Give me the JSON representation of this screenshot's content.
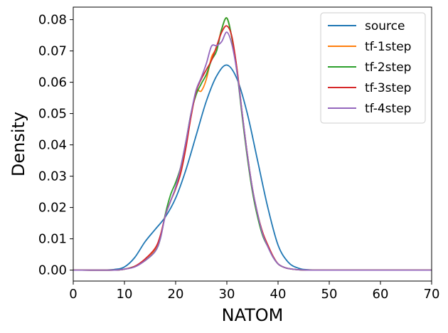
{
  "chart_data": {
    "type": "line",
    "title": "",
    "xlabel": "NATOM",
    "ylabel": "Density",
    "xlim": [
      0,
      70
    ],
    "ylim": [
      -0.0035,
      0.084
    ],
    "xticks": [
      0,
      10,
      20,
      30,
      40,
      50,
      60,
      70
    ],
    "yticks": [
      0.0,
      0.01,
      0.02,
      0.03,
      0.04,
      0.05,
      0.06,
      0.07,
      0.08
    ],
    "xtick_labels": [
      "0",
      "10",
      "20",
      "30",
      "40",
      "50",
      "60",
      "70"
    ],
    "ytick_labels": [
      "0.00",
      "0.01",
      "0.02",
      "0.03",
      "0.04",
      "0.05",
      "0.06",
      "0.07",
      "0.08"
    ],
    "grid": false,
    "legend_position": "top-right",
    "series": [
      {
        "name": "source",
        "color": "#1f77b4",
        "x": [
          0,
          5,
          8,
          10,
          12,
          14,
          16,
          18,
          20,
          22,
          24,
          26,
          28,
          30,
          32,
          34,
          36,
          38,
          40,
          42,
          44,
          46,
          50,
          60,
          70
        ],
        "y": [
          0.0,
          0.0,
          0.0002,
          0.001,
          0.004,
          0.009,
          0.013,
          0.017,
          0.023,
          0.032,
          0.043,
          0.054,
          0.062,
          0.0655,
          0.061,
          0.05,
          0.035,
          0.02,
          0.008,
          0.0025,
          0.0006,
          0.0001,
          0.0,
          0.0,
          0.0
        ]
      },
      {
        "name": "tf-1step",
        "color": "#ff7f0e",
        "x": [
          0,
          8,
          10,
          12,
          14,
          16,
          17,
          18,
          19,
          20,
          21,
          22,
          23,
          24,
          25,
          26,
          27,
          28,
          29,
          30,
          31,
          32,
          33,
          34,
          35,
          36,
          37,
          38,
          39,
          40,
          41,
          42,
          44,
          46,
          50,
          60,
          70
        ],
        "y": [
          0.0,
          0.0,
          0.0003,
          0.0012,
          0.003,
          0.0065,
          0.0105,
          0.0175,
          0.022,
          0.026,
          0.032,
          0.04,
          0.049,
          0.057,
          0.0572,
          0.061,
          0.068,
          0.071,
          0.077,
          0.0805,
          0.074,
          0.064,
          0.05,
          0.037,
          0.026,
          0.018,
          0.012,
          0.008,
          0.0045,
          0.002,
          0.001,
          0.0005,
          0.0001,
          0.0,
          0.0,
          0.0,
          0.0
        ]
      },
      {
        "name": "tf-2step",
        "color": "#2ca02c",
        "x": [
          0,
          8,
          10,
          12,
          14,
          16,
          17,
          18,
          19,
          20,
          21,
          22,
          23,
          24,
          25,
          26,
          27,
          28,
          29,
          30,
          31,
          32,
          33,
          34,
          35,
          36,
          37,
          38,
          39,
          40,
          41,
          42,
          44,
          46,
          50,
          60,
          70
        ],
        "y": [
          0.0,
          0.0,
          0.0003,
          0.0012,
          0.003,
          0.006,
          0.01,
          0.018,
          0.024,
          0.028,
          0.033,
          0.041,
          0.05,
          0.056,
          0.0595,
          0.0625,
          0.067,
          0.07,
          0.077,
          0.0805,
          0.074,
          0.063,
          0.049,
          0.036,
          0.025,
          0.017,
          0.011,
          0.0075,
          0.0042,
          0.002,
          0.001,
          0.0005,
          0.0001,
          0.0,
          0.0,
          0.0,
          0.0
        ]
      },
      {
        "name": "tf-3step",
        "color": "#d62728",
        "x": [
          0,
          8,
          10,
          12,
          14,
          16,
          17,
          18,
          19,
          20,
          21,
          22,
          23,
          24,
          25,
          26,
          27,
          28,
          29,
          30,
          31,
          32,
          33,
          34,
          35,
          36,
          37,
          38,
          39,
          40,
          41,
          42,
          44,
          46,
          50,
          60,
          70
        ],
        "y": [
          0.0,
          0.0,
          0.0003,
          0.0012,
          0.0035,
          0.007,
          0.011,
          0.0175,
          0.022,
          0.026,
          0.031,
          0.039,
          0.049,
          0.057,
          0.061,
          0.064,
          0.067,
          0.0715,
          0.076,
          0.078,
          0.0745,
          0.064,
          0.05,
          0.037,
          0.026,
          0.018,
          0.012,
          0.008,
          0.0045,
          0.002,
          0.001,
          0.0005,
          0.0001,
          0.0,
          0.0,
          0.0,
          0.0
        ]
      },
      {
        "name": "tf-4step",
        "color": "#9467bd",
        "x": [
          0,
          8,
          10,
          12,
          14,
          16,
          17,
          18,
          19,
          20,
          21,
          22,
          23,
          24,
          25,
          26,
          27,
          28,
          29,
          30,
          31,
          32,
          33,
          34,
          35,
          36,
          37,
          38,
          39,
          40,
          41,
          42,
          44,
          46,
          50,
          60,
          70
        ],
        "y": [
          0.0,
          0.0,
          0.0003,
          0.001,
          0.003,
          0.006,
          0.01,
          0.0175,
          0.022,
          0.0265,
          0.033,
          0.041,
          0.05,
          0.0575,
          0.0615,
          0.066,
          0.0715,
          0.0717,
          0.073,
          0.076,
          0.072,
          0.063,
          0.05,
          0.037,
          0.026,
          0.018,
          0.0115,
          0.0075,
          0.0042,
          0.002,
          0.001,
          0.0005,
          0.0001,
          0.0,
          0.0,
          0.0,
          0.0
        ]
      }
    ]
  }
}
